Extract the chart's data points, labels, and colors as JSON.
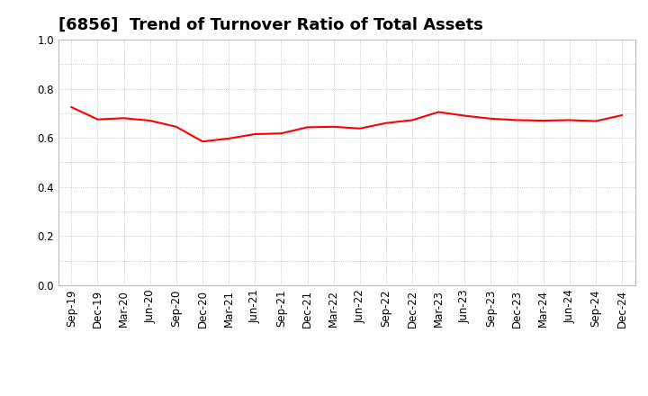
{
  "title": "[6856]  Trend of Turnover Ratio of Total Assets",
  "labels": [
    "Sep-19",
    "Dec-19",
    "Mar-20",
    "Jun-20",
    "Sep-20",
    "Dec-20",
    "Mar-21",
    "Jun-21",
    "Sep-21",
    "Dec-21",
    "Mar-22",
    "Jun-22",
    "Sep-22",
    "Dec-22",
    "Mar-23",
    "Jun-23",
    "Sep-23",
    "Dec-23",
    "Mar-24",
    "Jun-24",
    "Sep-24",
    "Dec-24"
  ],
  "values": [
    0.725,
    0.675,
    0.68,
    0.67,
    0.645,
    0.585,
    0.597,
    0.615,
    0.618,
    0.643,
    0.645,
    0.638,
    0.66,
    0.672,
    0.705,
    0.69,
    0.678,
    0.672,
    0.67,
    0.672,
    0.668,
    0.692
  ],
  "line_color": "#ff0000",
  "line_width": 1.5,
  "ylim": [
    0.0,
    1.0
  ],
  "yticks": [
    0.0,
    0.2,
    0.4,
    0.6,
    0.8,
    1.0
  ],
  "background_color": "#ffffff",
  "plot_bg_color": "#ffffff",
  "grid_color": "#bbbbbb",
  "title_fontsize": 13,
  "tick_fontsize": 8.5,
  "title_color": "#000000",
  "spine_color": "#bbbbbb"
}
